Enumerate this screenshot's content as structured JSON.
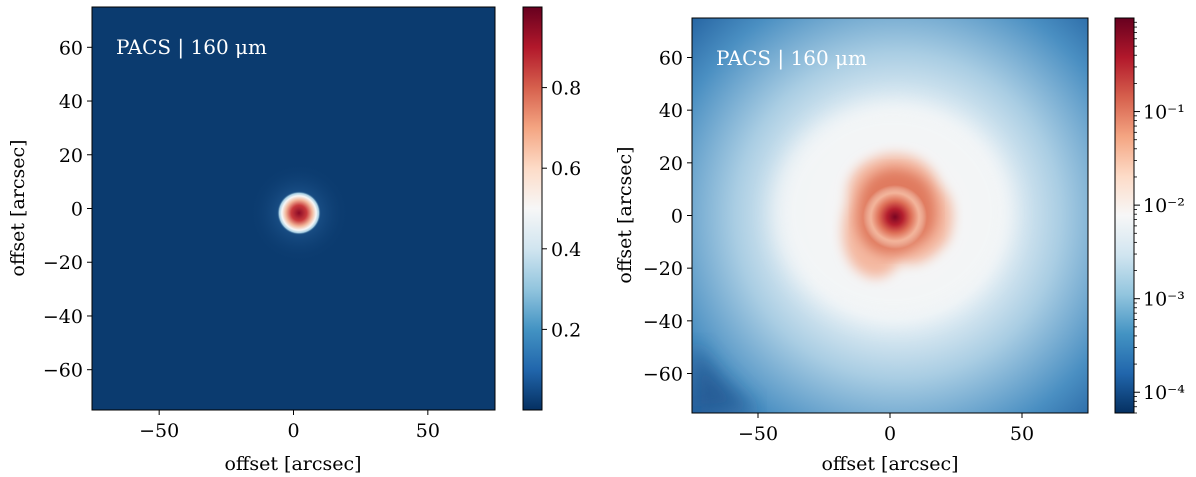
{
  "chart_data": [
    {
      "type": "heatmap",
      "annotation": "PACS | 160 μm",
      "xlabel": "offset [arcsec]",
      "ylabel": "offset [arcsec]",
      "xlim": [
        -75,
        75
      ],
      "ylim": [
        -75,
        75
      ],
      "xticks": [
        -50,
        0,
        50
      ],
      "yticks": [
        -60,
        -40,
        -20,
        0,
        20,
        40,
        60
      ],
      "peak": {
        "x": 2,
        "y": -2
      },
      "colorbar": {
        "scale": "linear",
        "range": [
          0,
          1
        ],
        "ticks": [
          0.2,
          0.4,
          0.6,
          0.8
        ]
      }
    },
    {
      "type": "heatmap",
      "annotation": "PACS | 160 μm",
      "xlabel": "offset [arcsec]",
      "ylabel": "offset [arcsec]",
      "xlim": [
        -75,
        75
      ],
      "ylim": [
        -75,
        75
      ],
      "xticks": [
        -50,
        0,
        50
      ],
      "yticks": [
        -60,
        -40,
        -20,
        0,
        20,
        40,
        60
      ],
      "peak": {
        "x": 2,
        "y": -2
      },
      "colorbar": {
        "scale": "log",
        "range": [
          6e-05,
          1
        ],
        "ticks": [
          "10⁻⁴",
          "10⁻³",
          "10⁻²",
          "10⁻¹"
        ],
        "tick_values": [
          0.0001,
          0.001,
          0.01,
          0.1
        ]
      }
    }
  ],
  "colors": {
    "cmap": "RdBu_r",
    "low": "#053061",
    "mid": "#f7f7f7",
    "high": "#67001f"
  }
}
